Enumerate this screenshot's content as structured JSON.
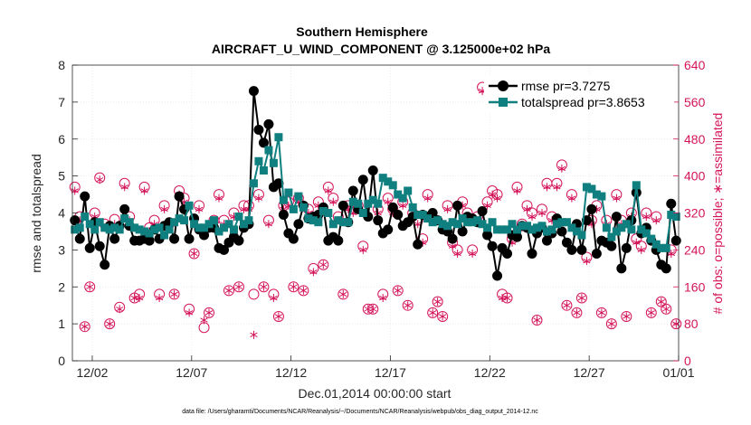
{
  "chart_data": {
    "type": "line",
    "title": "Southern Hemisphere",
    "subtitle": "AIRCRAFT_U_WIND_COMPONENT @ 3.125000e+02 hPa",
    "xlabel": "Dec.01,2014 00:00:00 start",
    "ylabel": "rmse and totalspread",
    "y2label": "# of obs: o=possible; ∗=assimilated",
    "footnote": "data file: /Users/gharamti/Documents/NCAR/Reanalysis/~/Documents/NCAR/Reanalysis/webpub/obs_diag_output_2014-12.nc",
    "xlim": [
      0.5,
      31.0
    ],
    "ylim": [
      0,
      8
    ],
    "y2lim": [
      0,
      640
    ],
    "x_ticks": [
      1.5,
      6.5,
      11.5,
      16.5,
      21.5,
      26.5,
      31.0
    ],
    "x_tick_labels": [
      "12/02",
      "12/07",
      "12/12",
      "12/17",
      "12/22",
      "12/27",
      "01/01"
    ],
    "y_ticks": [
      0,
      1,
      2,
      3,
      4,
      5,
      6,
      7,
      8
    ],
    "y2_ticks": [
      0,
      80,
      160,
      240,
      320,
      400,
      480,
      560,
      640
    ],
    "legend_position": "top-right",
    "colors": {
      "rmse": "#000000",
      "spread": "#0f7f7f",
      "obs": "#d4145a"
    },
    "series": [
      {
        "name": "rmse pr=3.7275",
        "axis": "left",
        "x": [
          0.625,
          0.875,
          1.125,
          1.375,
          1.625,
          1.875,
          2.125,
          2.375,
          2.625,
          2.875,
          3.125,
          3.375,
          3.625,
          3.875,
          4.125,
          4.375,
          4.625,
          4.875,
          5.125,
          5.375,
          5.625,
          5.875,
          6.125,
          6.375,
          6.625,
          6.875,
          7.125,
          7.375,
          7.625,
          7.875,
          8.125,
          8.375,
          8.625,
          8.875,
          9.125,
          9.375,
          9.625,
          9.875,
          10.125,
          10.375,
          10.625,
          10.875,
          11.125,
          11.375,
          11.625,
          11.875,
          12.125,
          12.375,
          12.625,
          12.875,
          13.125,
          13.375,
          13.625,
          13.875,
          14.125,
          14.375,
          14.625,
          14.875,
          15.125,
          15.375,
          15.625,
          15.875,
          16.125,
          16.375,
          16.625,
          16.875,
          17.125,
          17.375,
          17.625,
          17.875,
          18.125,
          18.375,
          18.625,
          18.875,
          19.125,
          19.375,
          19.625,
          19.875,
          20.125,
          20.375,
          20.625,
          20.875,
          21.125,
          21.375,
          21.625,
          21.875,
          22.125,
          22.375,
          22.625,
          22.875,
          23.125,
          23.375,
          23.625,
          23.875,
          24.125,
          24.375,
          24.625,
          24.875,
          25.125,
          25.375,
          25.625,
          25.875,
          26.125,
          26.375,
          26.625,
          26.875,
          27.125,
          27.375,
          27.625,
          27.875,
          28.125,
          28.375,
          28.625,
          28.875,
          29.125,
          29.375,
          29.625,
          29.875,
          30.125,
          30.375,
          30.625,
          30.875
        ],
        "values": [
          3.8,
          3.3,
          4.45,
          3.05,
          3.75,
          3.1,
          2.6,
          3.65,
          3.3,
          3.65,
          4.1,
          3.65,
          3.25,
          3.25,
          3.3,
          3.25,
          3.55,
          3.3,
          3.65,
          3.75,
          3.3,
          4.45,
          4.1,
          3.3,
          3.85,
          3.55,
          3.4,
          3.6,
          3.6,
          3.05,
          3.0,
          3.2,
          3.35,
          3.25,
          3.6,
          3.7,
          7.3,
          6.25,
          5.9,
          6.4,
          4.7,
          4.8,
          3.95,
          3.45,
          3.3,
          3.7,
          4.2,
          3.85,
          3.9,
          3.95,
          4.15,
          3.25,
          3.35,
          3.25,
          4.2,
          3.75,
          4.6,
          4.1,
          4.9,
          3.9,
          5.15,
          3.8,
          3.45,
          3.55,
          4.15,
          3.95,
          3.65,
          3.75,
          3.9,
          3.15,
          3.95,
          3.9,
          4.0,
          3.8,
          3.55,
          3.5,
          3.3,
          4.2,
          3.5,
          3.9,
          3.85,
          3.75,
          4.05,
          3.4,
          3.1,
          2.3,
          3.05,
          2.9,
          3.4,
          3.35,
          3.65,
          3.6,
          2.9,
          3.45,
          3.6,
          3.25,
          3.45,
          3.85,
          3.5,
          3.2,
          3.0,
          3.7,
          3.0,
          3.8,
          4.1,
          2.9,
          3.25,
          3.2,
          3.1,
          3.9,
          2.5,
          3.05,
          3.8,
          4.55,
          3.45,
          3.6,
          3.25,
          3.0,
          2.6,
          2.5,
          4.25,
          3.25
        ]
      },
      {
        "name": "totalspread pr=3.8653",
        "axis": "left",
        "x": [
          0.625,
          0.875,
          1.125,
          1.375,
          1.625,
          1.875,
          2.125,
          2.375,
          2.625,
          2.875,
          3.125,
          3.375,
          3.625,
          3.875,
          4.125,
          4.375,
          4.625,
          4.875,
          5.125,
          5.375,
          5.625,
          5.875,
          6.125,
          6.375,
          6.625,
          6.875,
          7.125,
          7.375,
          7.625,
          7.875,
          8.125,
          8.375,
          8.625,
          8.875,
          9.125,
          9.375,
          9.625,
          9.875,
          10.125,
          10.375,
          10.625,
          10.875,
          11.125,
          11.375,
          11.625,
          11.875,
          12.125,
          12.375,
          12.625,
          12.875,
          13.125,
          13.375,
          13.625,
          13.875,
          14.125,
          14.375,
          14.625,
          14.875,
          15.125,
          15.375,
          15.625,
          15.875,
          16.125,
          16.375,
          16.625,
          16.875,
          17.125,
          17.375,
          17.625,
          17.875,
          18.125,
          18.375,
          18.625,
          18.875,
          19.125,
          19.375,
          19.625,
          19.875,
          20.125,
          20.375,
          20.625,
          20.875,
          21.125,
          21.375,
          21.625,
          21.875,
          22.125,
          22.375,
          22.625,
          22.875,
          23.125,
          23.375,
          23.625,
          23.875,
          24.125,
          24.375,
          24.625,
          24.875,
          25.125,
          25.375,
          25.625,
          25.875,
          26.125,
          26.375,
          26.625,
          26.875,
          27.125,
          27.375,
          27.625,
          27.875,
          28.125,
          28.375,
          28.625,
          28.875,
          29.125,
          29.375,
          29.625,
          29.875,
          30.125,
          30.375,
          30.625,
          30.875
        ],
        "values": [
          3.55,
          3.6,
          3.9,
          3.7,
          3.55,
          3.75,
          3.6,
          3.55,
          3.6,
          3.55,
          3.85,
          3.75,
          3.6,
          3.55,
          3.5,
          3.45,
          3.55,
          3.6,
          3.4,
          3.55,
          3.75,
          3.85,
          3.8,
          4.2,
          3.7,
          3.6,
          3.6,
          3.7,
          3.8,
          3.5,
          3.6,
          3.7,
          3.55,
          3.9,
          3.7,
          3.8,
          4.8,
          5.4,
          5.15,
          5.7,
          5.35,
          6.05,
          4.35,
          4.55,
          4.1,
          4.45,
          4.15,
          3.85,
          3.8,
          3.75,
          4.05,
          4.0,
          3.7,
          3.8,
          3.75,
          3.75,
          4.3,
          4.25,
          4.0,
          4.25,
          4.35,
          4.25,
          4.95,
          4.85,
          4.75,
          4.5,
          4.4,
          4.6,
          4.15,
          3.95,
          3.95,
          3.85,
          3.75,
          3.8,
          3.7,
          3.65,
          3.75,
          3.7,
          3.85,
          3.75,
          3.75,
          3.8,
          3.7,
          3.6,
          3.75,
          3.55,
          3.55,
          3.55,
          3.7,
          3.55,
          3.65,
          3.65,
          3.55,
          3.6,
          3.65,
          3.5,
          3.55,
          3.7,
          3.75,
          3.75,
          3.6,
          3.5,
          3.4,
          4.7,
          4.65,
          4.5,
          4.45,
          3.6,
          3.35,
          3.5,
          3.6,
          3.7,
          3.55,
          4.75,
          3.55,
          3.45,
          3.3,
          3.15,
          3.05,
          3.05,
          3.95,
          3.9
        ]
      },
      {
        "name": "possible",
        "axis": "right",
        "x": [
          0.625,
          0.875,
          1.125,
          1.375,
          1.625,
          1.875,
          2.125,
          2.375,
          2.625,
          2.875,
          3.125,
          3.375,
          3.625,
          3.875,
          4.125,
          4.375,
          4.625,
          4.875,
          5.125,
          5.375,
          5.625,
          5.875,
          6.125,
          6.375,
          6.625,
          6.875,
          7.125,
          7.375,
          7.625,
          7.875,
          8.125,
          8.375,
          8.625,
          8.875,
          9.125,
          9.375,
          9.625,
          9.875,
          10.125,
          10.375,
          10.625,
          10.875,
          11.125,
          11.375,
          11.625,
          11.875,
          12.125,
          12.375,
          12.625,
          12.875,
          13.125,
          13.375,
          13.625,
          13.875,
          14.125,
          14.375,
          14.625,
          14.875,
          15.125,
          15.375,
          15.625,
          15.875,
          16.125,
          16.375,
          16.625,
          16.875,
          17.125,
          17.375,
          17.625,
          17.875,
          18.125,
          18.375,
          18.625,
          18.875,
          19.125,
          19.375,
          19.625,
          19.875,
          20.125,
          20.375,
          20.625,
          20.875,
          21.125,
          21.375,
          21.625,
          21.875,
          22.125,
          22.375,
          22.625,
          22.875,
          23.125,
          23.375,
          23.625,
          23.875,
          24.125,
          24.375,
          24.625,
          24.875,
          25.125,
          25.375,
          25.625,
          25.875,
          26.125,
          26.375,
          26.625,
          26.875,
          27.125,
          27.375,
          27.625,
          27.875,
          28.125,
          28.375,
          28.625,
          28.875,
          29.125,
          29.375,
          29.625,
          29.875,
          30.125,
          30.375,
          30.625,
          30.875
        ],
        "values": [
          376,
          312,
          74,
          160,
          320,
          396,
          296,
          80,
          306,
          116,
          384,
          312,
          136,
          144,
          376,
          288,
          304,
          144,
          336,
          296,
          144,
          368,
          352,
          112,
          232,
          336,
          72,
          104,
          304,
          360,
          304,
          152,
          320,
          160,
          336,
          336,
          144,
          360,
          160,
          304,
          144,
          96,
          336,
          344,
          160,
          352,
          152,
          328,
          200,
          344,
          208,
          376,
          352,
          312,
          144,
          336,
          328,
          336,
          248,
          112,
          112,
          328,
          144,
          352,
          328,
          152,
          344,
          120,
          320,
          304,
          264,
          360,
          104,
          128,
          96,
          336,
          256,
          240,
          344,
          320,
          240,
          312,
          592,
          344,
          368,
          360,
          144,
          136,
          264,
          376,
          296,
          336,
          320,
          88,
          328,
          384,
          312,
          384,
          424,
          120,
          360,
          104,
          136,
          224,
          304,
          336,
          104,
          304,
          80,
          360,
          304,
          96,
          320,
          264,
          248,
          320,
          104,
          312,
          128,
          112,
          240,
          80
        ]
      },
      {
        "name": "assimilated",
        "axis": "right",
        "x": [
          0.625,
          0.875,
          1.125,
          1.375,
          1.625,
          1.875,
          2.125,
          2.375,
          2.625,
          2.875,
          3.125,
          3.375,
          3.625,
          3.875,
          4.125,
          4.375,
          4.625,
          4.875,
          5.125,
          5.375,
          5.625,
          5.875,
          6.125,
          6.375,
          6.625,
          6.875,
          7.125,
          7.375,
          7.625,
          7.875,
          8.125,
          8.375,
          8.625,
          8.875,
          9.125,
          9.375,
          9.625,
          9.875,
          10.125,
          10.375,
          10.625,
          10.875,
          11.125,
          11.375,
          11.625,
          11.875,
          12.125,
          12.375,
          12.625,
          12.875,
          13.125,
          13.375,
          13.625,
          13.875,
          14.125,
          14.375,
          14.625,
          14.875,
          15.125,
          15.375,
          15.625,
          15.875,
          16.125,
          16.375,
          16.625,
          16.875,
          17.125,
          17.375,
          17.625,
          17.875,
          18.125,
          18.375,
          18.625,
          18.875,
          19.125,
          19.375,
          19.625,
          19.875,
          20.125,
          20.375,
          20.625,
          20.875,
          21.125,
          21.375,
          21.625,
          21.875,
          22.125,
          22.375,
          22.625,
          22.875,
          23.125,
          23.375,
          23.625,
          23.875,
          24.125,
          24.375,
          24.625,
          24.875,
          25.125,
          25.375,
          25.625,
          25.875,
          26.125,
          26.375,
          26.625,
          26.875,
          27.125,
          27.375,
          27.625,
          27.875,
          28.125,
          28.375,
          28.625,
          28.875,
          29.125,
          29.375,
          29.625,
          29.875,
          30.125,
          30.375,
          30.625,
          30.875
        ],
        "values": [
          368,
          304,
          74,
          160,
          312,
          392,
          288,
          80,
          296,
          112,
          376,
          304,
          136,
          136,
          368,
          280,
          296,
          136,
          328,
          288,
          144,
          360,
          344,
          104,
          232,
          328,
          88,
          104,
          296,
          352,
          296,
          152,
          312,
          160,
          328,
          328,
          56,
          352,
          160,
          296,
          136,
          96,
          328,
          336,
          160,
          344,
          152,
          320,
          192,
          336,
          208,
          368,
          344,
          304,
          144,
          328,
          320,
          328,
          240,
          112,
          112,
          320,
          136,
          344,
          320,
          152,
          336,
          120,
          312,
          296,
          256,
          352,
          104,
          128,
          96,
          328,
          248,
          232,
          336,
          312,
          232,
          304,
          584,
          336,
          360,
          352,
          136,
          136,
          256,
          368,
          288,
          328,
          312,
          88,
          320,
          376,
          304,
          376,
          416,
          120,
          352,
          104,
          136,
          216,
          296,
          328,
          104,
          296,
          80,
          352,
          296,
          96,
          312,
          256,
          240,
          312,
          104,
          304,
          128,
          112,
          232,
          80
        ]
      }
    ]
  }
}
